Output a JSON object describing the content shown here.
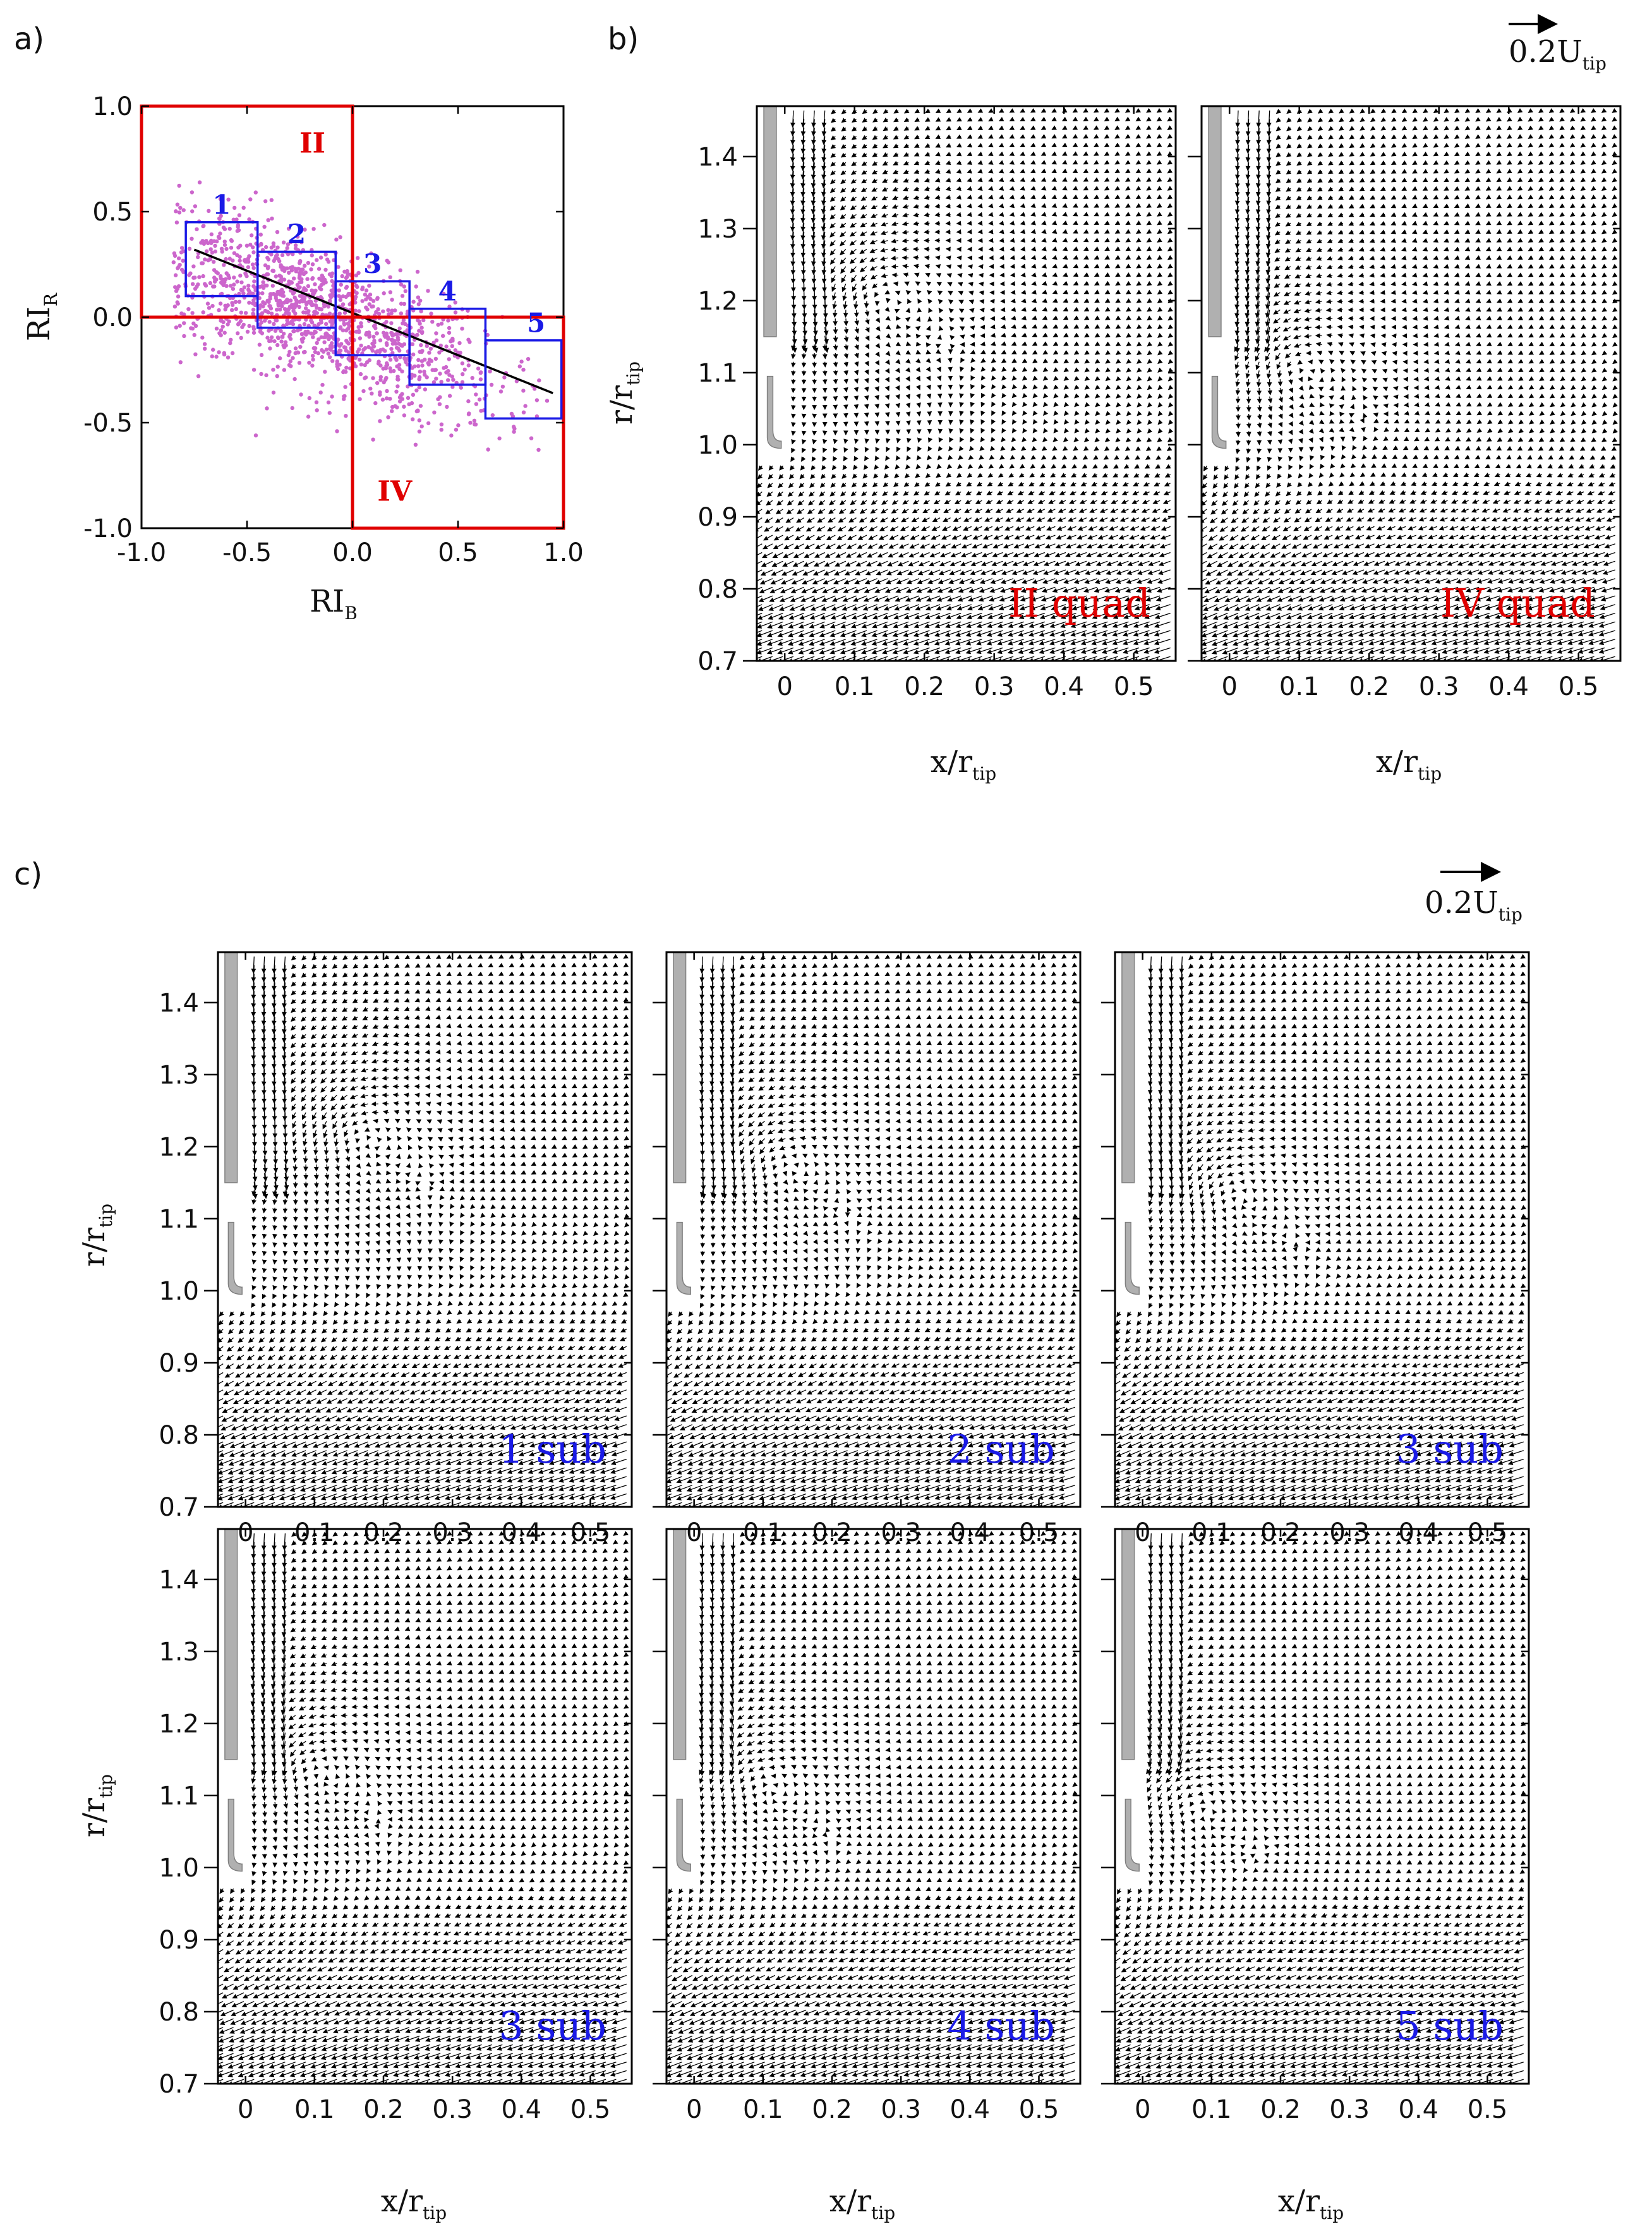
{
  "panel_labels": {
    "a": "a)",
    "b": "b)",
    "c": "c)"
  },
  "chart_data": [
    {
      "panel": "a)",
      "type": "scatter",
      "xlabel_main": "RI",
      "xlabel_sub": "B",
      "ylabel_main": "RI",
      "ylabel_sub": "R",
      "xlim": [
        -1.0,
        1.0
      ],
      "ylim": [
        -1.0,
        1.0
      ],
      "x_ticks": [
        "-1.0",
        "-0.5",
        "0.0",
        "0.5",
        "1.0"
      ],
      "y_ticks": [
        "-1.0",
        "-0.5",
        "0.0",
        "0.5",
        "1.0"
      ],
      "point_color": "#cc66cc",
      "fit_line": {
        "x": [
          -0.75,
          0.95
        ],
        "y": [
          0.32,
          -0.36
        ],
        "color": "#000000"
      },
      "quadrant_boxes": [
        {
          "label": "II",
          "x": [
            -1.0,
            0.0
          ],
          "y": [
            0.0,
            1.0
          ],
          "color": "#e00000"
        },
        {
          "label": "IV",
          "x": [
            0.0,
            1.0
          ],
          "y": [
            -1.0,
            0.0
          ],
          "color": "#e00000"
        }
      ],
      "sub_boxes": [
        {
          "label": "1",
          "x": [
            -0.79,
            -0.45
          ],
          "y": [
            0.1,
            0.45
          ],
          "color": "#1a1ae6"
        },
        {
          "label": "2",
          "x": [
            -0.45,
            -0.08
          ],
          "y": [
            -0.05,
            0.31
          ],
          "color": "#1a1ae6"
        },
        {
          "label": "3",
          "x": [
            -0.08,
            0.27
          ],
          "y": [
            -0.18,
            0.17
          ],
          "color": "#1a1ae6"
        },
        {
          "label": "4",
          "x": [
            0.27,
            0.63
          ],
          "y": [
            -0.32,
            0.04
          ],
          "color": "#1a1ae6"
        },
        {
          "label": "5",
          "x": [
            0.63,
            0.99
          ],
          "y": [
            -0.48,
            -0.11
          ],
          "color": "#1a1ae6"
        }
      ]
    },
    {
      "panel": "b)",
      "type": "quiver",
      "reference_vector": {
        "main": "0.2U",
        "sub": "tip"
      },
      "xlabel_main": "x/r",
      "xlabel_sub": "tip",
      "ylabel_main": "r/r",
      "ylabel_sub": "tip",
      "xlim": [
        -0.04,
        0.56
      ],
      "ylim": [
        0.7,
        1.47
      ],
      "x_ticks": [
        "0",
        "0.1",
        "0.2",
        "0.3",
        "0.4",
        "0.5"
      ],
      "y_ticks": [
        "0.7",
        "0.8",
        "0.9",
        "1.0",
        "1.1",
        "1.2",
        "1.3",
        "1.4"
      ],
      "plots": [
        {
          "label": "II quad",
          "label_color": "#e00000",
          "vortex_center": [
            0.14,
            1.21
          ]
        },
        {
          "label": "IV quad",
          "label_color": "#e00000",
          "vortex_center": [
            0.1,
            1.11
          ]
        }
      ]
    },
    {
      "panel": "c)",
      "type": "quiver",
      "reference_vector": {
        "main": "0.2U",
        "sub": "tip"
      },
      "xlabel_main": "x/r",
      "xlabel_sub": "tip",
      "ylabel_main": "r/r",
      "ylabel_sub": "tip",
      "xlim": [
        -0.04,
        0.56
      ],
      "ylim": [
        0.7,
        1.47
      ],
      "x_ticks": [
        "0",
        "0.1",
        "0.2",
        "0.3",
        "0.4",
        "0.5"
      ],
      "y_ticks": [
        "0.7",
        "0.8",
        "0.9",
        "1.0",
        "1.1",
        "1.2",
        "1.3",
        "1.4"
      ],
      "plots": [
        {
          "label": "1 sub",
          "label_color": "#1a1ae6",
          "vortex_center": [
            0.17,
            1.22
          ]
        },
        {
          "label": "2 sub",
          "label_color": "#1a1ae6",
          "vortex_center": [
            0.13,
            1.18
          ]
        },
        {
          "label": "3 sub",
          "label_color": "#1a1ae6",
          "vortex_center": [
            0.13,
            1.14
          ]
        },
        {
          "label": "3 sub",
          "label_color": "#1a1ae6",
          "vortex_center": [
            0.1,
            1.14
          ]
        },
        {
          "label": "4 sub",
          "label_color": "#1a1ae6",
          "vortex_center": [
            0.1,
            1.12
          ]
        },
        {
          "label": "5 sub",
          "label_color": "#1a1ae6",
          "vortex_center": [
            0.08,
            1.09
          ]
        }
      ]
    }
  ]
}
